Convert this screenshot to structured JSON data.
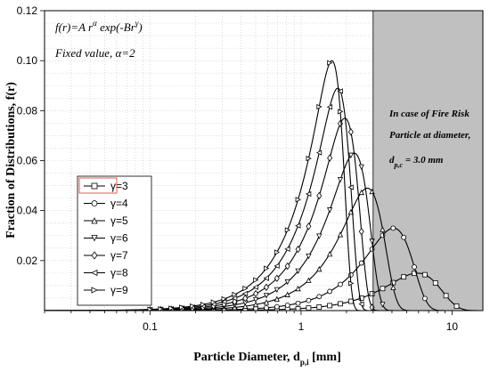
{
  "chart_data": {
    "type": "line",
    "xlabel": "Particle Diameter, d",
    "xlabel_sub": "p,i",
    "xlabel_unit": " [mm]",
    "ylabel": "Fraction of Distributions, f(r)",
    "x_scale": "log",
    "xlim": [
      0.02,
      16
    ],
    "ylim": [
      0,
      0.12
    ],
    "x_ticks": [
      0.1,
      1,
      10
    ],
    "x_tick_labels": [
      "0.1",
      "1",
      "10"
    ],
    "y_ticks": [
      0.02,
      0.04,
      0.06,
      0.08,
      0.1,
      0.12
    ],
    "y_tick_labels": [
      "0.02",
      "0.04",
      "0.06",
      "0.08",
      "0.10",
      "0.12"
    ],
    "grid": true,
    "legend_position": "lower-left",
    "shaded_region": {
      "x_from": 3.0,
      "color": "#c0c0c0"
    },
    "series": [
      {
        "name": "γ=3",
        "marker": "square",
        "peak_x": 5.9,
        "peak_y": 0.015
      },
      {
        "name": "γ=4",
        "marker": "circle",
        "peak_x": 4.1,
        "peak_y": 0.033
      },
      {
        "name": "γ=5",
        "marker": "triangle-up",
        "peak_x": 2.75,
        "peak_y": 0.049
      },
      {
        "name": "γ=6",
        "marker": "triangle-down",
        "peak_x": 2.25,
        "peak_y": 0.063
      },
      {
        "name": "γ=7",
        "marker": "diamond",
        "peak_x": 1.95,
        "peak_y": 0.077
      },
      {
        "name": "γ=8",
        "marker": "triangle-left",
        "peak_x": 1.75,
        "peak_y": 0.089
      },
      {
        "name": "γ=9",
        "marker": "triangle-right",
        "peak_x": 1.6,
        "peak_y": 0.1
      }
    ]
  },
  "annotations": {
    "formula": "f(r)=A r",
    "formula_sup1": "α",
    "formula_mid": " exp(-Br",
    "formula_sup2": "γ",
    "formula_end": ")",
    "fixed": "Fixed value, α=2",
    "fire_line1": "In case of Fire Risk",
    "fire_line2": "Particle at diameter,",
    "fire_line3_a": "d",
    "fire_line3_sub": "p,c",
    "fire_line3_b": " = 3.0 mm"
  }
}
